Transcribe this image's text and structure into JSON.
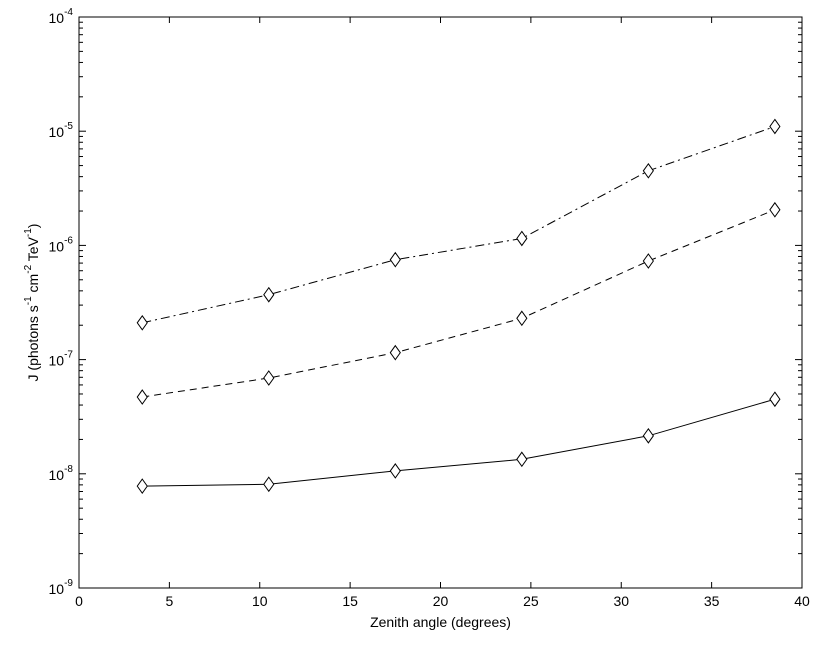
{
  "chart_data": {
    "type": "line",
    "xlabel": "Zenith angle (degrees)",
    "ylabel": {
      "parts": [
        "J (photons s",
        "-1",
        " cm",
        "-2",
        " TeV",
        "-1",
        ")"
      ]
    },
    "xlim": [
      0,
      40
    ],
    "ylim": [
      1e-09,
      0.0001
    ],
    "yscale": "log",
    "grid": false,
    "x_ticks": [
      0,
      5,
      10,
      15,
      20,
      25,
      30,
      35,
      40
    ],
    "y_ticks": [
      {
        "base": "10",
        "exp": "-9",
        "value": 1e-09
      },
      {
        "base": "10",
        "exp": "-8",
        "value": 1e-08
      },
      {
        "base": "10",
        "exp": "-7",
        "value": 1e-07
      },
      {
        "base": "10",
        "exp": "-6",
        "value": 1e-06
      },
      {
        "base": "10",
        "exp": "-5",
        "value": 1e-05
      },
      {
        "base": "10",
        "exp": "-4",
        "value": 0.0001
      }
    ],
    "x": [
      3.5,
      10.5,
      17.5,
      24.5,
      31.5,
      38.5
    ],
    "series": [
      {
        "style": "dashdot",
        "marker": "diamond",
        "values": [
          2.1e-07,
          3.7e-07,
          7.5e-07,
          1.15e-06,
          4.5e-06,
          1.1e-05
        ]
      },
      {
        "style": "dashed",
        "marker": "diamond",
        "values": [
          4.7e-08,
          6.9e-08,
          1.15e-07,
          2.3e-07,
          7.3e-07,
          2.05e-06
        ]
      },
      {
        "style": "solid",
        "marker": "diamond",
        "values": [
          7.8e-09,
          8.1e-09,
          1.06e-08,
          1.34e-08,
          2.15e-08,
          4.5e-08
        ]
      }
    ]
  }
}
